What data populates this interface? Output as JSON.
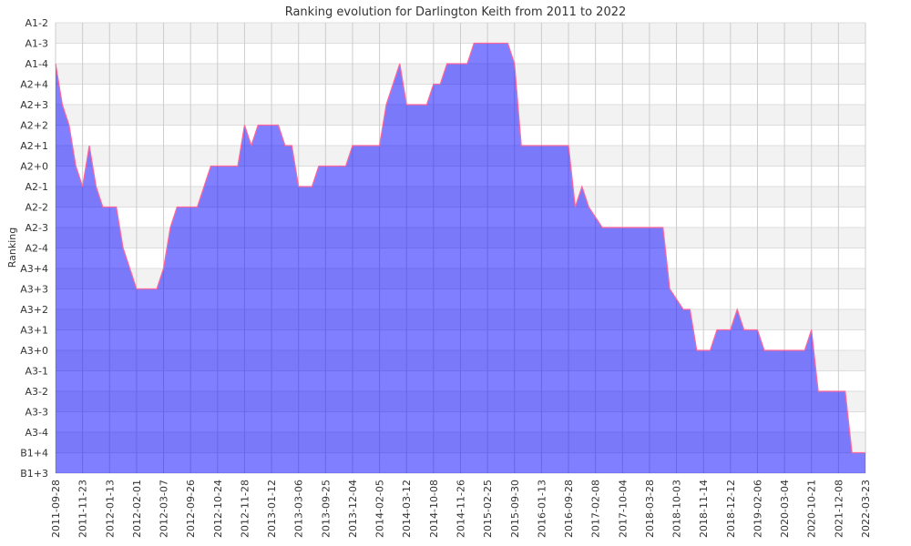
{
  "chart_data": {
    "type": "area",
    "title": "Ranking evolution for Darlington Keith from 2011 to 2022",
    "xlabel": "",
    "ylabel": "Ranking",
    "y_categories": [
      "A1-2",
      "A1-3",
      "A1-4",
      "A2+4",
      "A2+3",
      "A2+2",
      "A2+1",
      "A2+0",
      "A2-1",
      "A2-2",
      "A2-3",
      "A2-4",
      "A3+4",
      "A3+3",
      "A3+2",
      "A3+1",
      "A3+0",
      "A3-1",
      "A3-2",
      "A3-3",
      "A3-4",
      "B1+4",
      "B1+3"
    ],
    "x_tick_labels": [
      "2011-09-28",
      "2011-11-23",
      "2012-01-13",
      "2012-02-01",
      "2012-03-07",
      "2012-09-26",
      "2012-10-24",
      "2012-11-28",
      "2013-01-12",
      "2013-03-06",
      "2013-09-25",
      "2013-12-04",
      "2014-02-05",
      "2014-03-12",
      "2014-10-08",
      "2014-11-26",
      "2015-02-25",
      "2015-09-30",
      "2016-01-13",
      "2016-09-28",
      "2017-02-08",
      "2017-10-04",
      "2018-03-28",
      "2018-10-03",
      "2018-11-14",
      "2018-12-12",
      "2019-02-06",
      "2020-03-04",
      "2020-10-21",
      "2021-12-08",
      "2022-03-23"
    ],
    "x_unit_note": "x = position measured in tick-label index",
    "points": [
      [
        0,
        "A1-4"
      ],
      [
        0.25,
        "A2+3"
      ],
      [
        0.5,
        "A2+2"
      ],
      [
        0.75,
        "A2+0"
      ],
      [
        1,
        "A2-1"
      ],
      [
        1.25,
        "A2+1"
      ],
      [
        1.5,
        "A2-1"
      ],
      [
        1.75,
        "A2-2"
      ],
      [
        2.25,
        "A2-2"
      ],
      [
        2.5,
        "A2-4"
      ],
      [
        3,
        "A3+3"
      ],
      [
        3.75,
        "A3+3"
      ],
      [
        4,
        "A3+4"
      ],
      [
        4.25,
        "A2-3"
      ],
      [
        4.5,
        "A2-2"
      ],
      [
        5.25,
        "A2-2"
      ],
      [
        5.75,
        "A2+0"
      ],
      [
        6.75,
        "A2+0"
      ],
      [
        7,
        "A2+2"
      ],
      [
        7.25,
        "A2+1"
      ],
      [
        7.5,
        "A2+2"
      ],
      [
        8.25,
        "A2+2"
      ],
      [
        8.5,
        "A2+1"
      ],
      [
        8.75,
        "A2+1"
      ],
      [
        9,
        "A2-1"
      ],
      [
        9.5,
        "A2-1"
      ],
      [
        9.75,
        "A2+0"
      ],
      [
        10.75,
        "A2+0"
      ],
      [
        11,
        "A2+1"
      ],
      [
        12,
        "A2+1"
      ],
      [
        12.25,
        "A2+3"
      ],
      [
        12.75,
        "A1-4"
      ],
      [
        13,
        "A2+3"
      ],
      [
        13.75,
        "A2+3"
      ],
      [
        14,
        "A2+4"
      ],
      [
        14.25,
        "A2+4"
      ],
      [
        14.5,
        "A1-4"
      ],
      [
        15.25,
        "A1-4"
      ],
      [
        15.5,
        "A1-3"
      ],
      [
        16.75,
        "A1-3"
      ],
      [
        17,
        "A1-4"
      ],
      [
        17.25,
        "A2+1"
      ],
      [
        19,
        "A2+1"
      ],
      [
        19.25,
        "A2-2"
      ],
      [
        19.5,
        "A2-1"
      ],
      [
        19.75,
        "A2-2"
      ],
      [
        20.25,
        "A2-3"
      ],
      [
        22.5,
        "A2-3"
      ],
      [
        22.75,
        "A3+3"
      ],
      [
        23.25,
        "A3+2"
      ],
      [
        23.5,
        "A3+2"
      ],
      [
        23.75,
        "A3+0"
      ],
      [
        24.25,
        "A3+0"
      ],
      [
        24.5,
        "A3+1"
      ],
      [
        25,
        "A3+1"
      ],
      [
        25.25,
        "A3+2"
      ],
      [
        25.5,
        "A3+1"
      ],
      [
        26,
        "A3+1"
      ],
      [
        26.25,
        "A3+0"
      ],
      [
        27.75,
        "A3+0"
      ],
      [
        28,
        "A3+1"
      ],
      [
        28.25,
        "A3-2"
      ],
      [
        29.25,
        "A3-2"
      ],
      [
        29.5,
        "B1+4"
      ],
      [
        30,
        "B1+4"
      ]
    ],
    "grid": true,
    "legend": "none",
    "colors": {
      "fill": "#0000ff",
      "line": "#ff6699",
      "band": "#f2f2f2",
      "grid": "#cccccc"
    }
  }
}
